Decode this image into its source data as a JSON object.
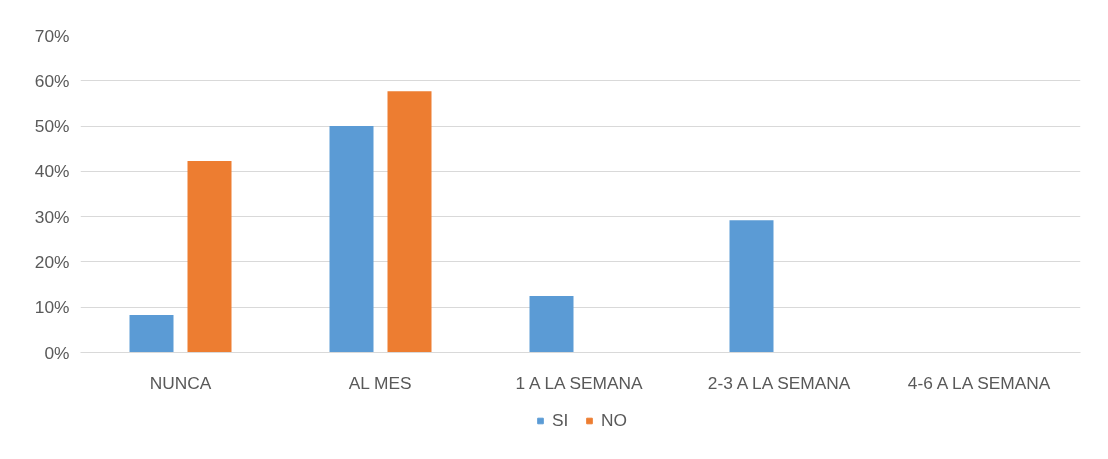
{
  "chart_data": {
    "type": "bar",
    "categories": [
      "NUNCA",
      "AL MES",
      "1 A LA SEMANA",
      "2-3 A LA SEMANA",
      "4-6 A LA SEMANA"
    ],
    "series": [
      {
        "name": "SI",
        "color": "#5b9bd5",
        "values": [
          8.3,
          50,
          12.5,
          29.2,
          0
        ]
      },
      {
        "name": "NO",
        "color": "#ed7d31",
        "values": [
          42.3,
          57.7,
          0,
          0,
          0
        ]
      }
    ],
    "ylim": [
      0,
      70
    ],
    "yticks": [
      {
        "value": 0,
        "label": "0%"
      },
      {
        "value": 10,
        "label": "10%"
      },
      {
        "value": 20,
        "label": "20%"
      },
      {
        "value": 30,
        "label": "30%"
      },
      {
        "value": 40,
        "label": "40%"
      },
      {
        "value": 50,
        "label": "50%"
      },
      {
        "value": 60,
        "label": "60%"
      },
      {
        "value": 70,
        "label": "70%"
      }
    ],
    "grid": "y",
    "legend": "bottom"
  }
}
